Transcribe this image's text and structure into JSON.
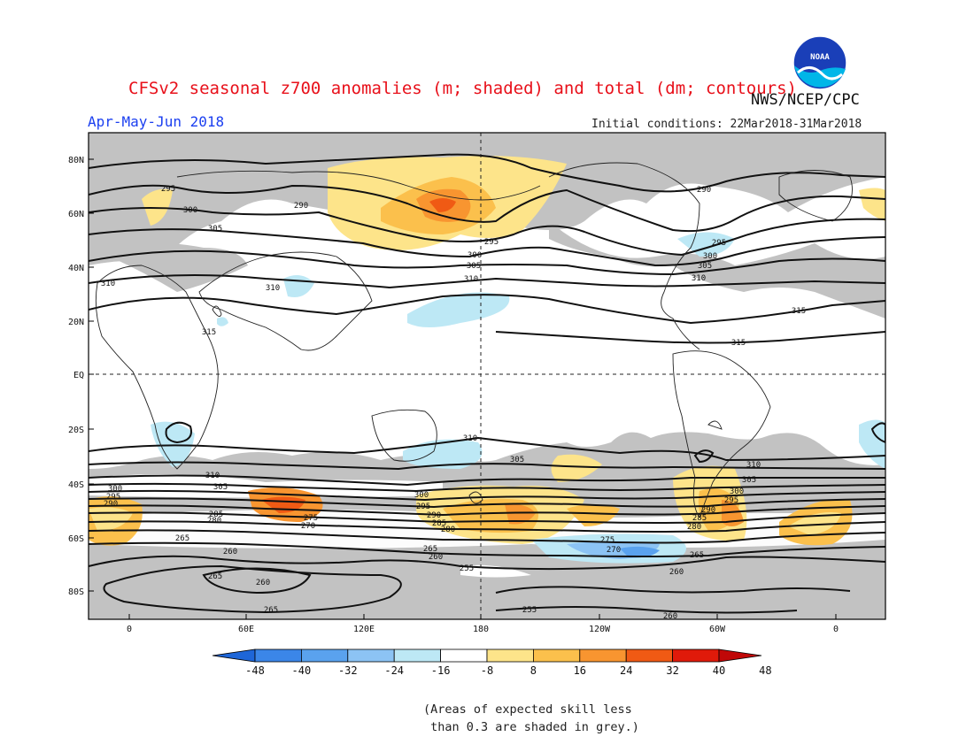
{
  "header": {
    "title": "CFSv2 seasonal z700 anomalies (m; shaded) and total (dm; contours)",
    "agency": "NWS/NCEP/CPC",
    "season": "Apr-May-Jun 2018",
    "initial_conditions": "Initial conditions: 22Mar2018-31Mar2018",
    "logo_text": "NOAA"
  },
  "axes": {
    "lat_labels": [
      "80N",
      "60N",
      "40N",
      "20N",
      "EQ",
      "20S",
      "40S",
      "60S",
      "80S"
    ],
    "lon_labels": [
      "0",
      "60E",
      "120E",
      "180",
      "120W",
      "60W",
      "0"
    ]
  },
  "contour_labels": {
    "northern": [
      "295",
      "300",
      "305",
      "310",
      "315",
      "290"
    ],
    "southern": [
      "310",
      "305",
      "300",
      "295",
      "290",
      "285",
      "280",
      "275",
      "270",
      "265",
      "260",
      "255"
    ]
  },
  "colorbar": {
    "ticks": [
      "-48",
      "-40",
      "-32",
      "-24",
      "-16",
      "-8",
      "8",
      "16",
      "24",
      "32",
      "40",
      "48"
    ],
    "colors": [
      "#1e66d8",
      "#3b86e8",
      "#5aa2ee",
      "#8cc3f4",
      "#bde8f5",
      "#ffffff",
      "#fde48a",
      "#fbc04c",
      "#f89530",
      "#f05a14",
      "#e01a0a",
      "#c00808"
    ]
  },
  "footnote": "(Areas of expected skill less\n than 0.3 are shaded in grey.)"
}
